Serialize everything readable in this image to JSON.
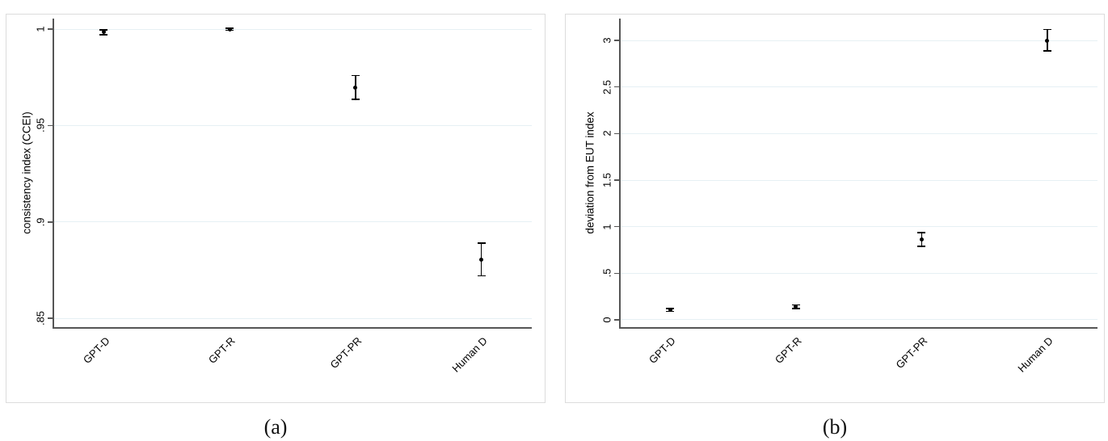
{
  "colors": {
    "gridline": "#e6f0f4",
    "axis": "#555555",
    "marker": "#000000",
    "box_border": "#dcdcdc",
    "text": "#000000"
  },
  "chart_data": [
    {
      "id": "a",
      "type": "scatter",
      "subtype": "point-estimate-with-95ci-errorbars",
      "caption": "(a)",
      "title": "",
      "xlabel": "",
      "ylabel": "consistency index (CCEI)",
      "categories": [
        "GPT-D",
        "GPT-R",
        "GPT-PR",
        "Human D"
      ],
      "x": [
        1,
        2,
        3,
        4
      ],
      "xlim": [
        0.6,
        4.4
      ],
      "ylim": [
        0.845,
        1.0055
      ],
      "ytick_values": [
        0.85,
        0.9,
        0.95,
        1
      ],
      "ytick_labels": [
        ".85",
        ".9",
        ".95",
        "1"
      ],
      "grid": "horizontal",
      "legend": "none",
      "series": [
        {
          "name": "mean CCEI with 95% CI",
          "points": [
            {
              "category": "GPT-D",
              "y": 0.9985,
              "ci_low": 0.9972,
              "ci_high": 0.9997
            },
            {
              "category": "GPT-R",
              "y": 1.0,
              "ci_low": 0.9994,
              "ci_high": 1.0004
            },
            {
              "category": "GPT-PR",
              "y": 0.9695,
              "ci_low": 0.9635,
              "ci_high": 0.976
            },
            {
              "category": "Human D",
              "y": 0.8805,
              "ci_low": 0.872,
              "ci_high": 0.889
            }
          ]
        }
      ]
    },
    {
      "id": "b",
      "type": "scatter",
      "subtype": "point-estimate-with-95ci-errorbars",
      "caption": "(b)",
      "title": "",
      "xlabel": "",
      "ylabel": "deviation from EUT index",
      "categories": [
        "GPT-D",
        "GPT-R",
        "GPT-PR",
        "Human D"
      ],
      "x": [
        1,
        2,
        3,
        4
      ],
      "xlim": [
        0.6,
        4.4
      ],
      "ylim": [
        -0.087,
        3.235
      ],
      "ytick_values": [
        0,
        0.5,
        1,
        1.5,
        2,
        2.5,
        3
      ],
      "ytick_labels": [
        "0",
        ".5",
        "1",
        "1.5",
        "2",
        "2.5",
        "3"
      ],
      "grid": "horizontal",
      "legend": "none",
      "series": [
        {
          "name": "mean deviation from EUT with 95% CI",
          "points": [
            {
              "category": "GPT-D",
              "y": 0.105,
              "ci_low": 0.09,
              "ci_high": 0.12
            },
            {
              "category": "GPT-R",
              "y": 0.14,
              "ci_low": 0.12,
              "ci_high": 0.16
            },
            {
              "category": "GPT-PR",
              "y": 0.865,
              "ci_low": 0.79,
              "ci_high": 0.935
            },
            {
              "category": "Human D",
              "y": 3.0,
              "ci_low": 2.89,
              "ci_high": 3.12
            }
          ]
        }
      ]
    }
  ]
}
